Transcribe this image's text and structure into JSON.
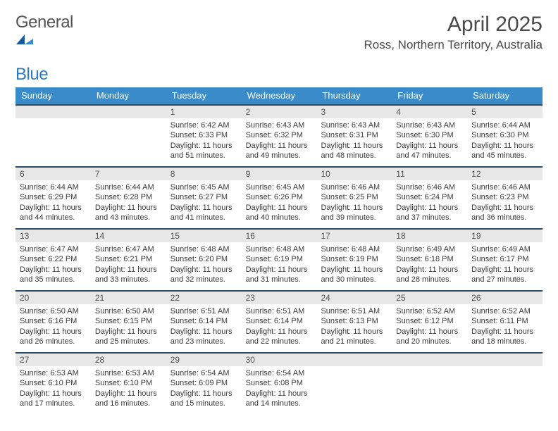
{
  "brand": {
    "word1": "General",
    "word2": "Blue"
  },
  "colors": {
    "header_bg": "#3a8bc9",
    "header_text": "#ffffff",
    "week_border": "#2b4a66",
    "daynum_bg": "#e7e7e7",
    "text": "#3a3a3a",
    "brand_gray": "#555555",
    "brand_blue": "#2f7bbf"
  },
  "title": "April 2025",
  "location": "Ross, Northern Territory, Australia",
  "weekdays": [
    "Sunday",
    "Monday",
    "Tuesday",
    "Wednesday",
    "Thursday",
    "Friday",
    "Saturday"
  ],
  "grid": {
    "rows": 5,
    "cols": 7,
    "leading_blank": 2,
    "first_day": 1,
    "last_day": 30
  },
  "days": {
    "1": {
      "sunrise": "6:42 AM",
      "sunset": "6:33 PM",
      "daylight": "11 hours and 51 minutes."
    },
    "2": {
      "sunrise": "6:43 AM",
      "sunset": "6:32 PM",
      "daylight": "11 hours and 49 minutes."
    },
    "3": {
      "sunrise": "6:43 AM",
      "sunset": "6:31 PM",
      "daylight": "11 hours and 48 minutes."
    },
    "4": {
      "sunrise": "6:43 AM",
      "sunset": "6:30 PM",
      "daylight": "11 hours and 47 minutes."
    },
    "5": {
      "sunrise": "6:44 AM",
      "sunset": "6:30 PM",
      "daylight": "11 hours and 45 minutes."
    },
    "6": {
      "sunrise": "6:44 AM",
      "sunset": "6:29 PM",
      "daylight": "11 hours and 44 minutes."
    },
    "7": {
      "sunrise": "6:44 AM",
      "sunset": "6:28 PM",
      "daylight": "11 hours and 43 minutes."
    },
    "8": {
      "sunrise": "6:45 AM",
      "sunset": "6:27 PM",
      "daylight": "11 hours and 41 minutes."
    },
    "9": {
      "sunrise": "6:45 AM",
      "sunset": "6:26 PM",
      "daylight": "11 hours and 40 minutes."
    },
    "10": {
      "sunrise": "6:46 AM",
      "sunset": "6:25 PM",
      "daylight": "11 hours and 39 minutes."
    },
    "11": {
      "sunrise": "6:46 AM",
      "sunset": "6:24 PM",
      "daylight": "11 hours and 37 minutes."
    },
    "12": {
      "sunrise": "6:46 AM",
      "sunset": "6:23 PM",
      "daylight": "11 hours and 36 minutes."
    },
    "13": {
      "sunrise": "6:47 AM",
      "sunset": "6:22 PM",
      "daylight": "11 hours and 35 minutes."
    },
    "14": {
      "sunrise": "6:47 AM",
      "sunset": "6:21 PM",
      "daylight": "11 hours and 33 minutes."
    },
    "15": {
      "sunrise": "6:48 AM",
      "sunset": "6:20 PM",
      "daylight": "11 hours and 32 minutes."
    },
    "16": {
      "sunrise": "6:48 AM",
      "sunset": "6:19 PM",
      "daylight": "11 hours and 31 minutes."
    },
    "17": {
      "sunrise": "6:48 AM",
      "sunset": "6:19 PM",
      "daylight": "11 hours and 30 minutes."
    },
    "18": {
      "sunrise": "6:49 AM",
      "sunset": "6:18 PM",
      "daylight": "11 hours and 28 minutes."
    },
    "19": {
      "sunrise": "6:49 AM",
      "sunset": "6:17 PM",
      "daylight": "11 hours and 27 minutes."
    },
    "20": {
      "sunrise": "6:50 AM",
      "sunset": "6:16 PM",
      "daylight": "11 hours and 26 minutes."
    },
    "21": {
      "sunrise": "6:50 AM",
      "sunset": "6:15 PM",
      "daylight": "11 hours and 25 minutes."
    },
    "22": {
      "sunrise": "6:51 AM",
      "sunset": "6:14 PM",
      "daylight": "11 hours and 23 minutes."
    },
    "23": {
      "sunrise": "6:51 AM",
      "sunset": "6:14 PM",
      "daylight": "11 hours and 22 minutes."
    },
    "24": {
      "sunrise": "6:51 AM",
      "sunset": "6:13 PM",
      "daylight": "11 hours and 21 minutes."
    },
    "25": {
      "sunrise": "6:52 AM",
      "sunset": "6:12 PM",
      "daylight": "11 hours and 20 minutes."
    },
    "26": {
      "sunrise": "6:52 AM",
      "sunset": "6:11 PM",
      "daylight": "11 hours and 18 minutes."
    },
    "27": {
      "sunrise": "6:53 AM",
      "sunset": "6:10 PM",
      "daylight": "11 hours and 17 minutes."
    },
    "28": {
      "sunrise": "6:53 AM",
      "sunset": "6:10 PM",
      "daylight": "11 hours and 16 minutes."
    },
    "29": {
      "sunrise": "6:54 AM",
      "sunset": "6:09 PM",
      "daylight": "11 hours and 15 minutes."
    },
    "30": {
      "sunrise": "6:54 AM",
      "sunset": "6:08 PM",
      "daylight": "11 hours and 14 minutes."
    }
  }
}
